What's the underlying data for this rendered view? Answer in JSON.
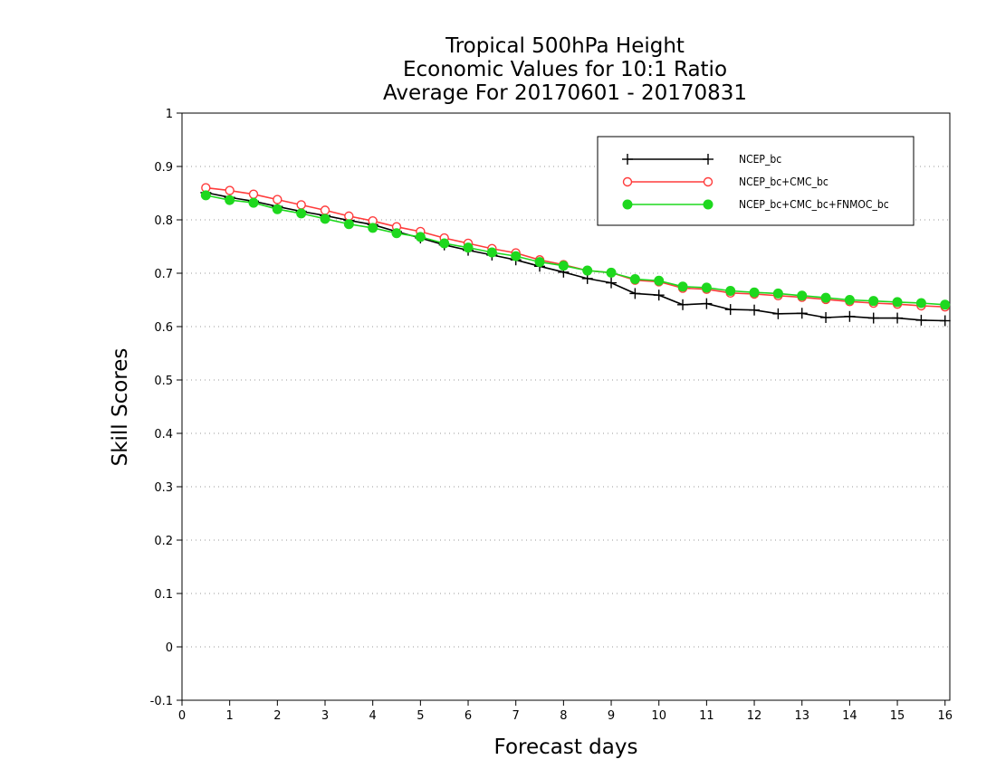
{
  "chart_data": {
    "type": "line",
    "title": [
      "Tropical 500hPa Height",
      "Economic Values for 10:1 Ratio",
      "Average For 20170601 - 20170831"
    ],
    "xlabel": "Forecast days",
    "ylabel": "Skill Scores",
    "xlim": [
      0,
      16.1
    ],
    "ylim": [
      -0.1,
      1
    ],
    "xticks": [
      "0",
      "1",
      "2",
      "3",
      "4",
      "5",
      "6",
      "7",
      "8",
      "9",
      "10",
      "11",
      "12",
      "13",
      "14",
      "15",
      "16"
    ],
    "yticks": [
      "-0.1",
      "0",
      "0.1",
      "0.2",
      "0.3",
      "0.4",
      "0.5",
      "0.6",
      "0.7",
      "0.8",
      "0.9",
      "1"
    ],
    "grid": "horizontal-dotted",
    "legend_position": "top-right",
    "x": [
      0.5,
      1,
      1.5,
      2,
      2.5,
      3,
      3.5,
      4,
      4.5,
      5,
      5.5,
      6,
      6.5,
      7,
      7.5,
      8,
      8.5,
      9,
      9.5,
      10,
      10.5,
      11,
      11.5,
      12,
      12.5,
      13,
      13.5,
      14,
      14.5,
      15,
      15.5,
      16
    ],
    "series": [
      {
        "name": "NCEP_bc",
        "color": "#000000",
        "marker": "plus",
        "values": [
          0.851,
          0.842,
          0.835,
          0.825,
          0.816,
          0.808,
          0.799,
          0.791,
          0.778,
          0.766,
          0.753,
          0.743,
          0.734,
          0.725,
          0.713,
          0.702,
          0.69,
          0.682,
          0.662,
          0.659,
          0.641,
          0.643,
          0.632,
          0.631,
          0.624,
          0.625,
          0.617,
          0.619,
          0.616,
          0.616,
          0.612,
          0.611
        ]
      },
      {
        "name": "NCEP_bc+CMC_bc",
        "color": "#ff3b3b",
        "marker": "open-circle",
        "values": [
          0.86,
          0.855,
          0.848,
          0.838,
          0.828,
          0.818,
          0.807,
          0.798,
          0.787,
          0.778,
          0.766,
          0.756,
          0.746,
          0.738,
          0.725,
          0.716,
          0.705,
          0.701,
          0.687,
          0.684,
          0.672,
          0.67,
          0.663,
          0.661,
          0.658,
          0.655,
          0.651,
          0.647,
          0.644,
          0.642,
          0.639,
          0.637
        ]
      },
      {
        "name": "NCEP_bc+CMC_bc+FNMOC_bc",
        "color": "#1ed81e",
        "marker": "filled-circle",
        "values": [
          0.846,
          0.837,
          0.832,
          0.82,
          0.812,
          0.802,
          0.792,
          0.785,
          0.775,
          0.768,
          0.756,
          0.748,
          0.739,
          0.732,
          0.721,
          0.714,
          0.705,
          0.701,
          0.689,
          0.686,
          0.675,
          0.673,
          0.667,
          0.664,
          0.662,
          0.658,
          0.654,
          0.65,
          0.648,
          0.646,
          0.644,
          0.641
        ]
      }
    ]
  }
}
